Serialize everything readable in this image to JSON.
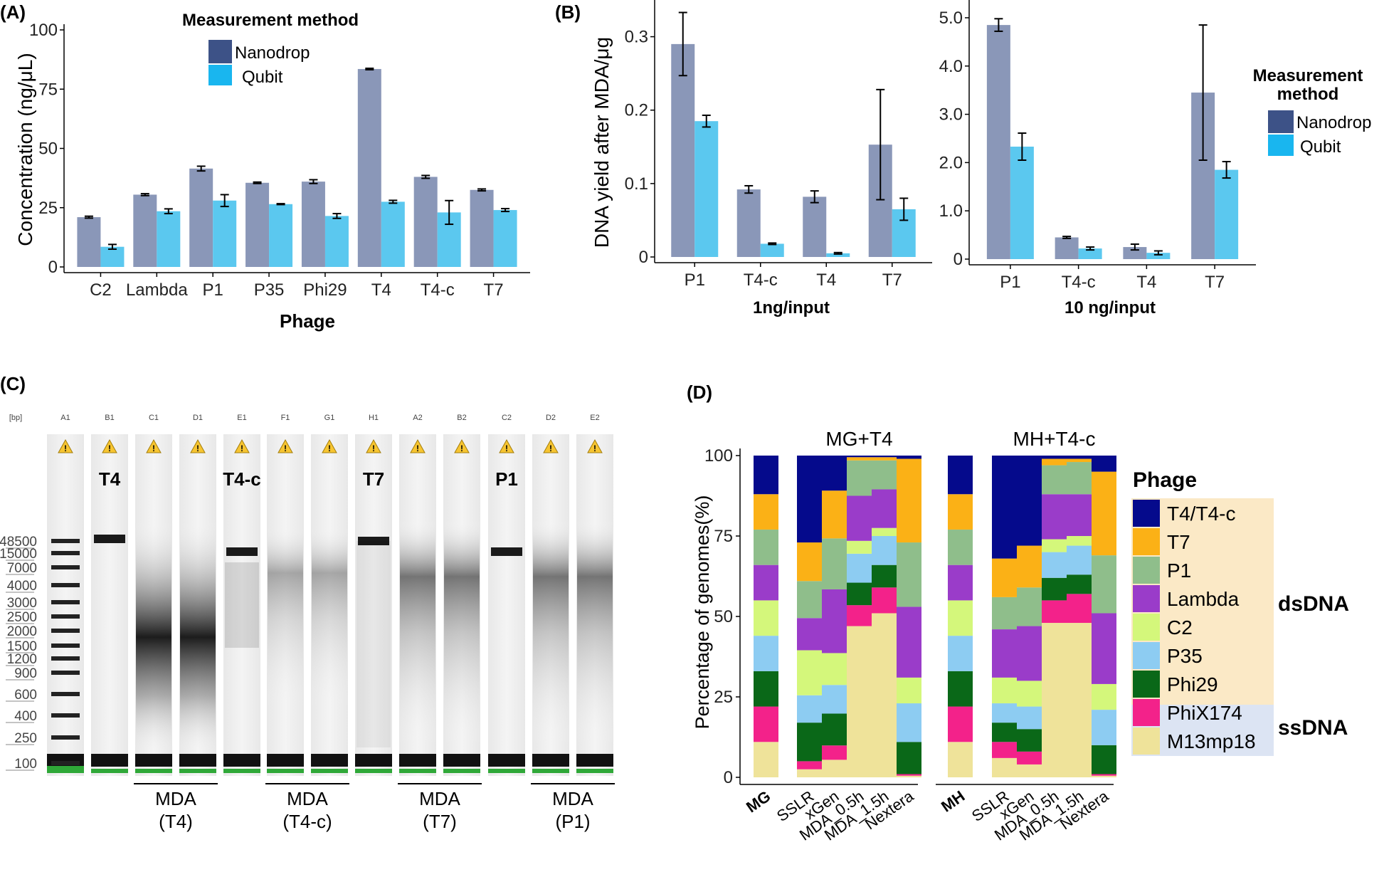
{
  "colors": {
    "nanodrop": "#8a97b8",
    "qubit": "#5bc8ef",
    "nanodrop_legend": "#3d5287",
    "qubit_legend": "#19b6ef",
    "dsdna_band": "#fbe9c6",
    "ssdna_band": "#dce4f3",
    "phage_colors": {
      "T4/T4-c": "#050a8c",
      "T7": "#fbb116",
      "P1": "#8fbe8b",
      "Lambda": "#9a3cc9",
      "C2": "#d4f77b",
      "P35": "#8dccf2",
      "Phi29": "#0a6818",
      "PhiX174": "#f3228a",
      "M13mp18": "#efe39a"
    }
  },
  "panel_labels": {
    "a": "(A)",
    "b": "(B)",
    "c": "(C)",
    "d": "(D)"
  },
  "chart_data": [
    {
      "id": "A",
      "type": "bar",
      "title": "",
      "xlabel": "Phage",
      "ylabel": "Concentration (ng/μL)",
      "ylim": [
        0,
        100
      ],
      "yticks": [
        "0",
        "25",
        "50",
        "75",
        "100"
      ],
      "categories": [
        "C2",
        "Lambda",
        "P1",
        "P35",
        "Phi29",
        "T4",
        "T4-c",
        "T7"
      ],
      "series": [
        {
          "name": "Nanodrop",
          "values": [
            21,
            30.5,
            41.5,
            35.5,
            36,
            83.5,
            38,
            32.5
          ],
          "errors": [
            0.4,
            0.4,
            1,
            0.3,
            0.8,
            0.3,
            0.6,
            0.4
          ]
        },
        {
          "name": "Qubit",
          "values": [
            8.5,
            23.5,
            28,
            26.5,
            21.5,
            27.5,
            23,
            24
          ],
          "errors": [
            1,
            1,
            2.5,
            0.2,
            1,
            0.6,
            5,
            0.6
          ]
        }
      ],
      "legend": {
        "title": "Measurement method",
        "entries": [
          "Nanodrop",
          "Qubit"
        ],
        "placement": "top-right"
      }
    },
    {
      "id": "B1",
      "type": "bar",
      "ylabel": "DNA yield after MDA/μg",
      "xlabel": "1ng/input",
      "ylim": [
        0,
        0.35
      ],
      "yticks": [
        "0",
        "0.1",
        "0.2",
        "0.3"
      ],
      "categories": [
        "P1",
        "T4-c",
        "T4",
        "T7"
      ],
      "series": [
        {
          "name": "Nanodrop",
          "values": [
            0.29,
            0.092,
            0.082,
            0.153
          ],
          "errors": [
            0.043,
            0.005,
            0.008,
            0.075
          ]
        },
        {
          "name": "Qubit",
          "values": [
            0.185,
            0.018,
            0.005,
            0.065
          ],
          "errors": [
            0.008,
            0.001,
            0.001,
            0.015
          ]
        }
      ]
    },
    {
      "id": "B2",
      "type": "bar",
      "xlabel": "10 ng/input",
      "ylim": [
        0,
        5.25
      ],
      "yticks": [
        "0",
        "1.0",
        "2.0",
        "3.0",
        "4.0",
        "5.0"
      ],
      "categories": [
        "P1",
        "T4-c",
        "T4",
        "T7"
      ],
      "series": [
        {
          "name": "Nanodrop",
          "values": [
            4.85,
            0.45,
            0.25,
            3.45
          ],
          "errors": [
            0.13,
            0.02,
            0.06,
            1.4
          ]
        },
        {
          "name": "Qubit",
          "values": [
            2.33,
            0.22,
            0.13,
            1.85
          ],
          "errors": [
            0.28,
            0.03,
            0.04,
            0.17
          ]
        }
      ],
      "legend": {
        "title_line1": "Measurement",
        "title_line2": "method",
        "entries": [
          "Nanodrop",
          "Qubit"
        ],
        "placement": "right"
      }
    },
    {
      "id": "D",
      "type": "stacked-bar",
      "ylabel": "Percentage of genomes(%)",
      "ylim": [
        0,
        100
      ],
      "yticks": [
        "0",
        "25",
        "50",
        "75",
        "100"
      ],
      "stack_order": [
        "M13mp18",
        "PhiX174",
        "Phi29",
        "P35",
        "C2",
        "Lambda",
        "P1",
        "T7",
        "T4/T4-c"
      ],
      "groups": [
        {
          "title": "MG+T4",
          "reference": {
            "label": "MG",
            "values": [
              11,
              11,
              11,
              11,
              11,
              11,
              11,
              11,
              12
            ]
          },
          "bars": [
            {
              "label": "SSLR",
              "values": [
                2.5,
                2.5,
                12,
                8.5,
                14,
                10,
                11.5,
                12,
                27
              ]
            },
            {
              "label": "xGen",
              "values": [
                5.5,
                4.5,
                10,
                9,
                10,
                20,
                16,
                15,
                11
              ]
            },
            {
              "label": "MDA_0.5h",
              "values": [
                47,
                6.5,
                7,
                9,
                4,
                14,
                11,
                1,
                0.5
              ]
            },
            {
              "label": "MDA_1.5h",
              "values": [
                51,
                8,
                7,
                9,
                2.5,
                12,
                9,
                1,
                0.5
              ]
            },
            {
              "label": "Nextera",
              "values": [
                0.5,
                0.5,
                10,
                12,
                8,
                22,
                20,
                26,
                1
              ]
            }
          ]
        },
        {
          "title": "MH+T4-c",
          "reference": {
            "label": "MH",
            "values": [
              11,
              11,
              11,
              11,
              11,
              11,
              11,
              11,
              12
            ]
          },
          "bars": [
            {
              "label": "SSLR",
              "values": [
                6,
                5,
                6,
                6,
                8,
                15,
                10,
                12,
                32
              ]
            },
            {
              "label": "xGen",
              "values": [
                4,
                4,
                7,
                7,
                8,
                17,
                12,
                13,
                28
              ]
            },
            {
              "label": "MDA_0.5h",
              "values": [
                48,
                7,
                7,
                8,
                4,
                14,
                9,
                2,
                1
              ]
            },
            {
              "label": "MDA_1.5h",
              "values": [
                48,
                9,
                6,
                9,
                3,
                13,
                10,
                1,
                1
              ]
            },
            {
              "label": "Nextera",
              "values": [
                0.5,
                0.5,
                9,
                11,
                8,
                22,
                18,
                26,
                5
              ]
            }
          ]
        }
      ],
      "legend": {
        "title": "Phage",
        "entries": [
          "T4/T4-c",
          "T7",
          "P1",
          "Lambda",
          "C2",
          "P35",
          "Phi29",
          "PhiX174",
          "M13mp18"
        ],
        "dsdna_label": "dsDNA",
        "ssdna_label": "ssDNA"
      }
    }
  ],
  "gel": {
    "unit_label": "[bp]",
    "lanes": [
      "A1",
      "B1",
      "C1",
      "D1",
      "E1",
      "F1",
      "G1",
      "H1",
      "A2",
      "B2",
      "C2",
      "D2",
      "E2"
    ],
    "ladder_sizes": [
      "48500",
      "15000",
      "7000",
      "4000",
      "3000",
      "2500",
      "2000",
      "1500",
      "1200",
      "900",
      "600",
      "400",
      "250",
      "100"
    ],
    "sample_labels": [
      "T4",
      "T4-c",
      "T7",
      "P1"
    ],
    "mda_groups": [
      {
        "line1": "MDA",
        "line2": "(T4)"
      },
      {
        "line1": "MDA",
        "line2": "(T4-c)"
      },
      {
        "line1": "MDA",
        "line2": "(T7)"
      },
      {
        "line1": "MDA",
        "line2": "(P1)"
      }
    ],
    "warning_glyph": "!"
  }
}
